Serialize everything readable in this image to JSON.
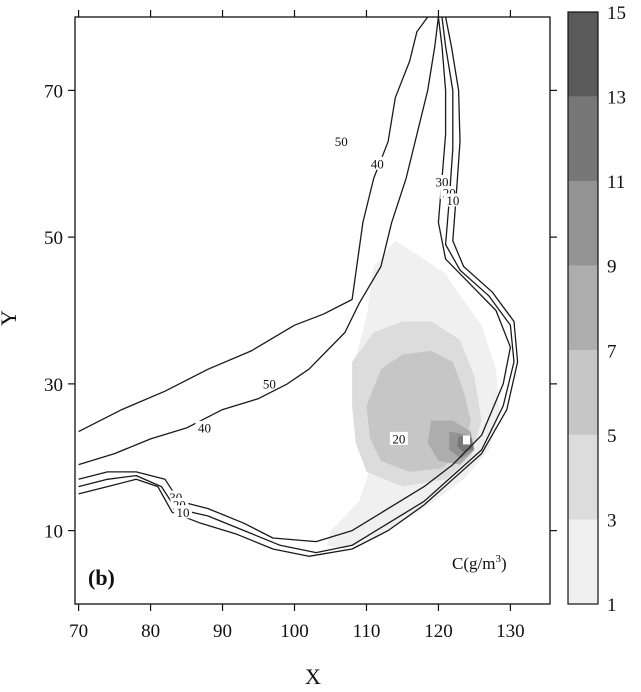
{
  "chart_data": {
    "type": "heatmap",
    "panel_label": "(b)",
    "xlabel": "X",
    "ylabel": "Y",
    "xlim": [
      69.5,
      135.5
    ],
    "ylim": [
      0,
      80
    ],
    "x_ticks": [
      70,
      80,
      90,
      100,
      110,
      120,
      130
    ],
    "y_ticks": [
      10,
      30,
      50,
      70
    ],
    "colorbar": {
      "label_base": "C(g/m",
      "label_sup": "3",
      "label_tail": ")",
      "levels": [
        1,
        3,
        5,
        7,
        9,
        11,
        13,
        15
      ],
      "colors": [
        "#f0f0f0",
        "#dcdcdc",
        "#c6c6c6",
        "#adadad",
        "#939393",
        "#777777",
        "#5a5a5a"
      ]
    },
    "isobaths": [
      {
        "label": "50",
        "label_positions": [
          [
            96.5,
            30
          ],
          [
            106.5,
            63
          ]
        ],
        "points": [
          [
            70,
            23.5
          ],
          [
            76,
            26.5
          ],
          [
            82,
            29
          ],
          [
            88,
            32
          ],
          [
            94,
            34.5
          ],
          [
            100,
            38
          ],
          [
            104,
            39.5
          ],
          [
            108,
            41.5
          ],
          [
            108.5,
            45
          ],
          [
            109.5,
            52
          ],
          [
            111,
            58
          ],
          [
            113,
            63
          ],
          [
            114,
            69
          ],
          [
            116,
            74
          ],
          [
            117,
            78
          ],
          [
            118.5,
            80
          ]
        ]
      },
      {
        "label": "40",
        "label_positions": [
          [
            87.5,
            24
          ],
          [
            111.5,
            60
          ]
        ],
        "points": [
          [
            70,
            19
          ],
          [
            75,
            20.5
          ],
          [
            80,
            22.5
          ],
          [
            85,
            24
          ],
          [
            90,
            26.5
          ],
          [
            95,
            28
          ],
          [
            99,
            30
          ],
          [
            102,
            32
          ],
          [
            107,
            37
          ],
          [
            109,
            41
          ],
          [
            112,
            46
          ],
          [
            113.5,
            52
          ],
          [
            115.5,
            58
          ],
          [
            117,
            64
          ],
          [
            118.5,
            70
          ],
          [
            119.5,
            76
          ],
          [
            120,
            80
          ]
        ]
      },
      {
        "label": "30",
        "label_positions": [
          [
            83.5,
            14.5
          ],
          [
            120.5,
            57.5
          ]
        ],
        "points": [
          [
            70,
            17
          ],
          [
            74,
            18
          ],
          [
            78,
            18
          ],
          [
            82,
            17
          ],
          [
            84,
            14
          ],
          [
            88,
            13
          ],
          [
            93,
            11
          ],
          [
            97,
            9
          ],
          [
            103,
            8.5
          ],
          [
            108,
            10
          ],
          [
            113,
            13
          ],
          [
            118,
            16
          ],
          [
            122,
            19
          ],
          [
            126,
            23
          ],
          [
            129,
            30
          ],
          [
            130,
            35
          ],
          [
            128,
            40
          ],
          [
            124,
            44
          ],
          [
            121,
            47
          ],
          [
            120,
            52
          ],
          [
            120.5,
            58
          ],
          [
            121,
            64
          ],
          [
            121,
            70
          ],
          [
            120.5,
            76
          ],
          [
            120,
            80
          ]
        ]
      },
      {
        "label": "20",
        "label_positions": [
          [
            84,
            13.5
          ],
          [
            121.5,
            56
          ],
          [
            114.5,
            22.5
          ]
        ],
        "points": [
          [
            70,
            16
          ],
          [
            74,
            17
          ],
          [
            78,
            17.5
          ],
          [
            81.5,
            16
          ],
          [
            83.5,
            13
          ],
          [
            88,
            12
          ],
          [
            93,
            10
          ],
          [
            98,
            8
          ],
          [
            103,
            7
          ],
          [
            108,
            8
          ],
          [
            113,
            11
          ],
          [
            118,
            14
          ],
          [
            122,
            17.5
          ],
          [
            126,
            21
          ],
          [
            129,
            27
          ],
          [
            130.5,
            33
          ],
          [
            130,
            38
          ],
          [
            127,
            42
          ],
          [
            123,
            45.5
          ],
          [
            121,
            49
          ],
          [
            121.5,
            55
          ],
          [
            122,
            62
          ],
          [
            122,
            70
          ],
          [
            121,
            76
          ],
          [
            120.5,
            80
          ]
        ]
      },
      {
        "label": "10",
        "label_positions": [
          [
            84.5,
            12.5
          ],
          [
            122,
            55
          ]
        ],
        "points": [
          [
            70,
            15
          ],
          [
            74,
            16
          ],
          [
            78,
            17
          ],
          [
            81,
            16
          ],
          [
            83,
            12.5
          ],
          [
            87,
            11
          ],
          [
            92,
            9.5
          ],
          [
            97,
            7.5
          ],
          [
            102,
            6.5
          ],
          [
            108,
            7.5
          ],
          [
            113,
            10
          ],
          [
            118,
            13.5
          ],
          [
            122,
            17
          ],
          [
            126,
            20.5
          ],
          [
            129.5,
            26.5
          ],
          [
            131,
            33
          ],
          [
            130.5,
            38.5
          ],
          [
            127.5,
            42.5
          ],
          [
            123.5,
            46
          ],
          [
            122,
            49.5
          ],
          [
            122.5,
            56
          ],
          [
            123,
            63
          ],
          [
            122.8,
            70
          ],
          [
            121.8,
            76
          ],
          [
            121,
            80
          ]
        ]
      }
    ],
    "concentration_regions": [
      {
        "level": 1,
        "points": [
          [
            110,
            39
          ],
          [
            111,
            46
          ],
          [
            114,
            49.5
          ],
          [
            118,
            47
          ],
          [
            121,
            45
          ],
          [
            123,
            42
          ],
          [
            126,
            38
          ],
          [
            128,
            32
          ],
          [
            128.5,
            26
          ],
          [
            127,
            21
          ],
          [
            123.5,
            17
          ],
          [
            118,
            13
          ],
          [
            112,
            9.5
          ],
          [
            107,
            7.5
          ],
          [
            104.5,
            8
          ],
          [
            105,
            10
          ],
          [
            109,
            14
          ],
          [
            111,
            20
          ],
          [
            109,
            26
          ],
          [
            108,
            32
          ]
        ]
      },
      {
        "level": 3,
        "points": [
          [
            108,
            33
          ],
          [
            111,
            37
          ],
          [
            115,
            38.5
          ],
          [
            119,
            38.5
          ],
          [
            123,
            36
          ],
          [
            125,
            31
          ],
          [
            126,
            25
          ],
          [
            124.5,
            20
          ],
          [
            121,
            17
          ],
          [
            115,
            16
          ],
          [
            110,
            18
          ],
          [
            108.5,
            22
          ],
          [
            108,
            27
          ]
        ]
      },
      {
        "level": 5,
        "points": [
          [
            110,
            27
          ],
          [
            112,
            32
          ],
          [
            115,
            34
          ],
          [
            119,
            34.5
          ],
          [
            122,
            33
          ],
          [
            123.5,
            29
          ],
          [
            124.5,
            25
          ],
          [
            123.5,
            21
          ],
          [
            120.5,
            18.5
          ],
          [
            116,
            18
          ],
          [
            112,
            19.5
          ],
          [
            110.5,
            22.5
          ]
        ]
      },
      {
        "level": 7,
        "points": [
          [
            119,
            25
          ],
          [
            122,
            25
          ],
          [
            124.5,
            23.5
          ],
          [
            125,
            21
          ],
          [
            123,
            19
          ],
          [
            120,
            19.5
          ],
          [
            118.5,
            22
          ]
        ]
      },
      {
        "level": 9,
        "points": [
          [
            121.5,
            23.5
          ],
          [
            124.5,
            23
          ],
          [
            125,
            21
          ],
          [
            123.2,
            19.8
          ],
          [
            121.5,
            21
          ]
        ]
      },
      {
        "level": 11,
        "points": [
          [
            122.8,
            22.9
          ],
          [
            124.6,
            22.6
          ],
          [
            124.8,
            21.1
          ],
          [
            123.5,
            20.6
          ],
          [
            122.6,
            21.5
          ]
        ]
      }
    ],
    "source_cell": [
      123.9,
      22.3
    ]
  }
}
